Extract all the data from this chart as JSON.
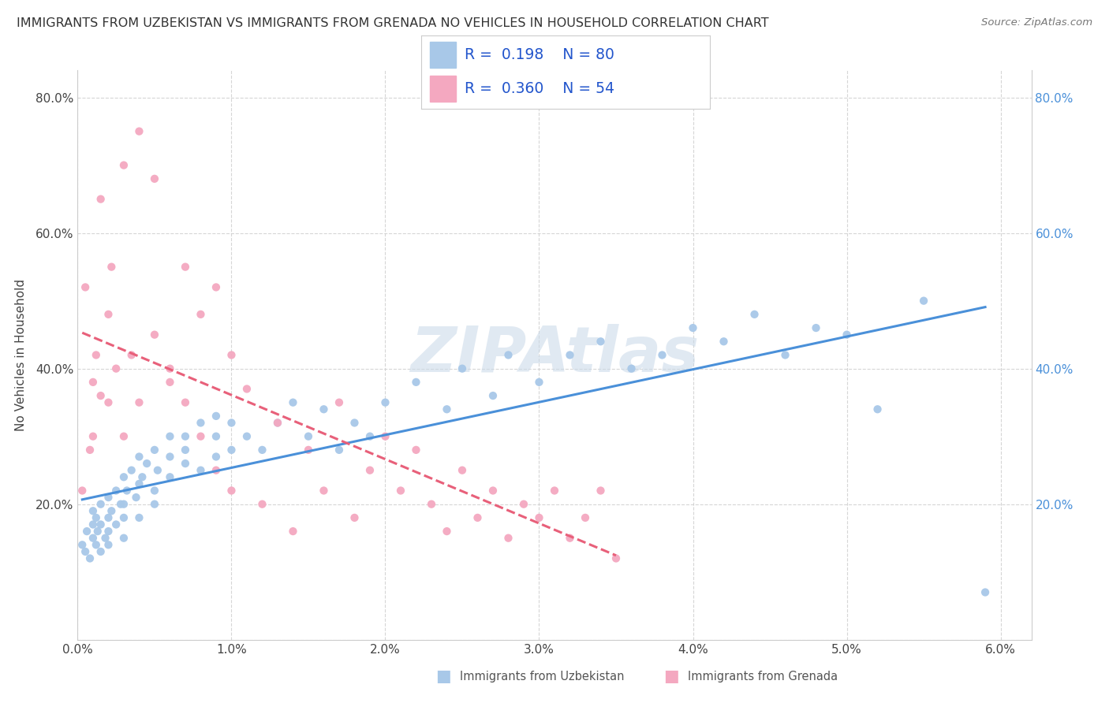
{
  "title": "IMMIGRANTS FROM UZBEKISTAN VS IMMIGRANTS FROM GRENADA NO VEHICLES IN HOUSEHOLD CORRELATION CHART",
  "source": "Source: ZipAtlas.com",
  "ylabel": "No Vehicles in Household",
  "xlim": [
    0.0,
    0.062
  ],
  "ylim": [
    0.0,
    0.84
  ],
  "xticks": [
    0.0,
    0.01,
    0.02,
    0.03,
    0.04,
    0.05,
    0.06
  ],
  "xticklabels": [
    "0.0%",
    "1.0%",
    "2.0%",
    "3.0%",
    "4.0%",
    "5.0%",
    "6.0%"
  ],
  "yticks": [
    0.0,
    0.2,
    0.4,
    0.6,
    0.8
  ],
  "yticklabels_left": [
    "",
    "20.0%",
    "40.0%",
    "60.0%",
    "80.0%"
  ],
  "yticklabels_right": [
    "",
    "20.0%",
    "40.0%",
    "60.0%",
    "80.0%"
  ],
  "uzbekistan_color": "#a8c8e8",
  "grenada_color": "#f4a8c0",
  "trendline_uzbekistan_color": "#4a90d9",
  "trendline_grenada_color": "#e8607a",
  "legend_text_color": "#2255cc",
  "R_uzbekistan": 0.198,
  "N_uzbekistan": 80,
  "R_grenada": 0.36,
  "N_grenada": 54,
  "uzbekistan_x": [
    0.0003,
    0.0005,
    0.0006,
    0.0008,
    0.001,
    0.001,
    0.001,
    0.0012,
    0.0012,
    0.0013,
    0.0015,
    0.0015,
    0.0015,
    0.0018,
    0.002,
    0.002,
    0.002,
    0.002,
    0.0022,
    0.0025,
    0.0025,
    0.0028,
    0.003,
    0.003,
    0.003,
    0.003,
    0.0032,
    0.0035,
    0.0038,
    0.004,
    0.004,
    0.004,
    0.0042,
    0.0045,
    0.005,
    0.005,
    0.005,
    0.0052,
    0.006,
    0.006,
    0.006,
    0.007,
    0.007,
    0.007,
    0.008,
    0.008,
    0.009,
    0.009,
    0.009,
    0.01,
    0.01,
    0.011,
    0.012,
    0.013,
    0.014,
    0.015,
    0.016,
    0.017,
    0.018,
    0.019,
    0.02,
    0.022,
    0.024,
    0.025,
    0.027,
    0.028,
    0.03,
    0.032,
    0.034,
    0.036,
    0.038,
    0.04,
    0.042,
    0.044,
    0.046,
    0.048,
    0.05,
    0.052,
    0.055,
    0.059
  ],
  "uzbekistan_y": [
    0.14,
    0.13,
    0.16,
    0.12,
    0.15,
    0.17,
    0.19,
    0.14,
    0.18,
    0.16,
    0.13,
    0.17,
    0.2,
    0.15,
    0.14,
    0.18,
    0.21,
    0.16,
    0.19,
    0.17,
    0.22,
    0.2,
    0.15,
    0.18,
    0.24,
    0.2,
    0.22,
    0.25,
    0.21,
    0.23,
    0.27,
    0.18,
    0.24,
    0.26,
    0.22,
    0.28,
    0.2,
    0.25,
    0.24,
    0.3,
    0.27,
    0.26,
    0.3,
    0.28,
    0.25,
    0.32,
    0.27,
    0.3,
    0.33,
    0.28,
    0.32,
    0.3,
    0.28,
    0.32,
    0.35,
    0.3,
    0.34,
    0.28,
    0.32,
    0.3,
    0.35,
    0.38,
    0.34,
    0.4,
    0.36,
    0.42,
    0.38,
    0.42,
    0.44,
    0.4,
    0.42,
    0.46,
    0.44,
    0.48,
    0.42,
    0.46,
    0.45,
    0.34,
    0.5,
    0.07
  ],
  "grenada_x": [
    0.0003,
    0.0005,
    0.0008,
    0.001,
    0.001,
    0.0012,
    0.0015,
    0.0015,
    0.002,
    0.002,
    0.0022,
    0.0025,
    0.003,
    0.003,
    0.0035,
    0.004,
    0.004,
    0.005,
    0.005,
    0.006,
    0.006,
    0.007,
    0.007,
    0.008,
    0.008,
    0.009,
    0.009,
    0.01,
    0.01,
    0.011,
    0.012,
    0.013,
    0.014,
    0.015,
    0.016,
    0.017,
    0.018,
    0.019,
    0.02,
    0.021,
    0.022,
    0.023,
    0.024,
    0.025,
    0.026,
    0.027,
    0.028,
    0.029,
    0.03,
    0.031,
    0.032,
    0.033,
    0.034,
    0.035
  ],
  "grenada_y": [
    0.22,
    0.52,
    0.28,
    0.38,
    0.3,
    0.42,
    0.36,
    0.65,
    0.48,
    0.35,
    0.55,
    0.4,
    0.3,
    0.7,
    0.42,
    0.75,
    0.35,
    0.45,
    0.68,
    0.4,
    0.38,
    0.55,
    0.35,
    0.48,
    0.3,
    0.52,
    0.25,
    0.42,
    0.22,
    0.37,
    0.2,
    0.32,
    0.16,
    0.28,
    0.22,
    0.35,
    0.18,
    0.25,
    0.3,
    0.22,
    0.28,
    0.2,
    0.16,
    0.25,
    0.18,
    0.22,
    0.15,
    0.2,
    0.18,
    0.22,
    0.15,
    0.18,
    0.22,
    0.12
  ],
  "watermark": "ZIPAtlas",
  "background_color": "#ffffff",
  "grid_color": "#cccccc"
}
